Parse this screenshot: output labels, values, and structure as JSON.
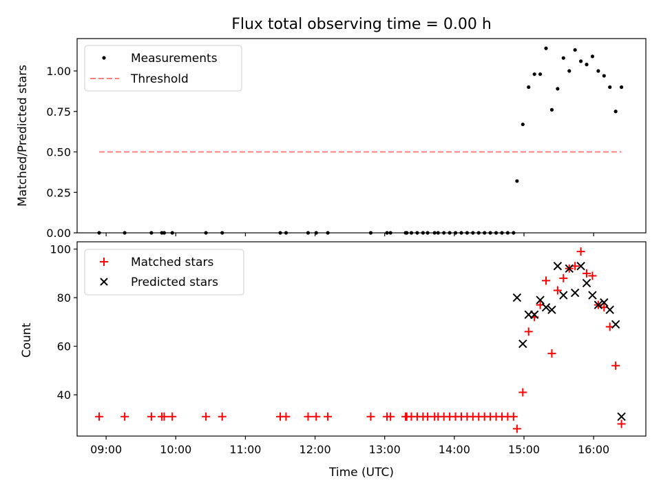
{
  "chart_data": [
    {
      "type": "scatter",
      "title": "Flux total observing time = 0.00 h",
      "xlabel": "",
      "ylabel": "Matched/Predicted stars",
      "xlim": [
        "08:35",
        "16:45"
      ],
      "ylim": [
        0,
        1.2
      ],
      "yticks": [
        "0.00",
        "0.25",
        "0.50",
        "0.75",
        "1.00"
      ],
      "legend_position": "upper-left",
      "series": [
        {
          "name": "Measurements",
          "kind": "points",
          "color": "#000000",
          "points": [
            [
              "08:54",
              0.0
            ],
            [
              "09:16",
              0.0
            ],
            [
              "09:39",
              0.0
            ],
            [
              "09:48",
              0.0
            ],
            [
              "09:50",
              0.0
            ],
            [
              "09:57",
              0.0
            ],
            [
              "10:26",
              0.0
            ],
            [
              "10:40",
              0.0
            ],
            [
              "11:30",
              0.0
            ],
            [
              "11:35",
              0.0
            ],
            [
              "11:54",
              0.0
            ],
            [
              "12:01",
              0.0
            ],
            [
              "12:11",
              0.0
            ],
            [
              "12:48",
              0.0
            ],
            [
              "13:02",
              0.0
            ],
            [
              "13:05",
              0.0
            ],
            [
              "13:18",
              0.0
            ],
            [
              "13:19",
              0.0
            ],
            [
              "13:23",
              0.0
            ],
            [
              "13:28",
              0.0
            ],
            [
              "13:33",
              0.0
            ],
            [
              "13:37",
              0.0
            ],
            [
              "13:43",
              0.0
            ],
            [
              "13:46",
              0.0
            ],
            [
              "13:51",
              0.0
            ],
            [
              "13:56",
              0.0
            ],
            [
              "14:01",
              0.0
            ],
            [
              "14:06",
              0.0
            ],
            [
              "14:11",
              0.0
            ],
            [
              "14:16",
              0.0
            ],
            [
              "14:21",
              0.0
            ],
            [
              "14:26",
              0.0
            ],
            [
              "14:31",
              0.0
            ],
            [
              "14:36",
              0.0
            ],
            [
              "14:41",
              0.0
            ],
            [
              "14:46",
              0.0
            ],
            [
              "14:51",
              0.0
            ],
            [
              "14:54",
              0.32
            ],
            [
              "14:59",
              0.67
            ],
            [
              "15:04",
              0.9
            ],
            [
              "15:09",
              0.98
            ],
            [
              "15:14",
              0.98
            ],
            [
              "15:19",
              1.14
            ],
            [
              "15:24",
              0.76
            ],
            [
              "15:29",
              0.89
            ],
            [
              "15:34",
              1.08
            ],
            [
              "15:39",
              1.0
            ],
            [
              "15:44",
              1.13
            ],
            [
              "15:49",
              1.06
            ],
            [
              "15:54",
              1.04
            ],
            [
              "15:59",
              1.09
            ],
            [
              "16:04",
              1.0
            ],
            [
              "16:09",
              0.97
            ],
            [
              "16:14",
              0.9
            ],
            [
              "16:19",
              0.75
            ],
            [
              "16:24",
              0.9
            ]
          ]
        },
        {
          "name": "Threshold",
          "kind": "dashed-line",
          "color": "#ff7f7f",
          "points": [
            [
              "08:54",
              0.5
            ],
            [
              "16:24",
              0.5
            ]
          ]
        }
      ]
    },
    {
      "type": "scatter",
      "title": "",
      "xlabel": "Time (UTC)",
      "ylabel": "Count",
      "xlim": [
        "08:35",
        "16:45"
      ],
      "ylim": [
        23,
        103
      ],
      "xticks": [
        "09:00",
        "10:00",
        "11:00",
        "12:00",
        "13:00",
        "14:00",
        "15:00",
        "16:00"
      ],
      "yticks": [
        "40",
        "60",
        "80",
        "100"
      ],
      "legend_position": "upper-left",
      "series": [
        {
          "name": "Matched stars",
          "kind": "plus",
          "color": "#ff0000",
          "points": [
            [
              "08:54",
              31
            ],
            [
              "09:16",
              31
            ],
            [
              "09:39",
              31
            ],
            [
              "09:48",
              31
            ],
            [
              "09:50",
              31
            ],
            [
              "09:57",
              31
            ],
            [
              "10:26",
              31
            ],
            [
              "10:40",
              31
            ],
            [
              "11:30",
              31
            ],
            [
              "11:35",
              31
            ],
            [
              "11:54",
              31
            ],
            [
              "12:01",
              31
            ],
            [
              "12:11",
              31
            ],
            [
              "12:48",
              31
            ],
            [
              "13:02",
              31
            ],
            [
              "13:05",
              31
            ],
            [
              "13:18",
              31
            ],
            [
              "13:19",
              31
            ],
            [
              "13:23",
              31
            ],
            [
              "13:28",
              31
            ],
            [
              "13:33",
              31
            ],
            [
              "13:37",
              31
            ],
            [
              "13:43",
              31
            ],
            [
              "13:46",
              31
            ],
            [
              "13:51",
              31
            ],
            [
              "13:56",
              31
            ],
            [
              "14:01",
              31
            ],
            [
              "14:06",
              31
            ],
            [
              "14:11",
              31
            ],
            [
              "14:16",
              31
            ],
            [
              "14:21",
              31
            ],
            [
              "14:26",
              31
            ],
            [
              "14:31",
              31
            ],
            [
              "14:36",
              31
            ],
            [
              "14:41",
              31
            ],
            [
              "14:46",
              31
            ],
            [
              "14:51",
              31
            ],
            [
              "14:54",
              26
            ],
            [
              "14:59",
              41
            ],
            [
              "15:04",
              66
            ],
            [
              "15:09",
              72
            ],
            [
              "15:14",
              77
            ],
            [
              "15:19",
              87
            ],
            [
              "15:24",
              57
            ],
            [
              "15:29",
              83
            ],
            [
              "15:34",
              88
            ],
            [
              "15:39",
              92
            ],
            [
              "15:44",
              93
            ],
            [
              "15:49",
              99
            ],
            [
              "15:54",
              90
            ],
            [
              "15:59",
              89
            ],
            [
              "16:04",
              77
            ],
            [
              "16:09",
              76
            ],
            [
              "16:14",
              68
            ],
            [
              "16:19",
              52
            ],
            [
              "16:24",
              28
            ]
          ]
        },
        {
          "name": "Predicted stars",
          "kind": "cross",
          "color": "#000000",
          "points": [
            [
              "14:54",
              80
            ],
            [
              "14:59",
              61
            ],
            [
              "15:04",
              73
            ],
            [
              "15:09",
              73
            ],
            [
              "15:14",
              79
            ],
            [
              "15:19",
              76
            ],
            [
              "15:24",
              75
            ],
            [
              "15:29",
              93
            ],
            [
              "15:34",
              81
            ],
            [
              "15:39",
              92
            ],
            [
              "15:44",
              82
            ],
            [
              "15:49",
              93
            ],
            [
              "15:54",
              86
            ],
            [
              "15:59",
              81
            ],
            [
              "16:04",
              77
            ],
            [
              "16:09",
              78
            ],
            [
              "16:14",
              75
            ],
            [
              "16:19",
              69
            ],
            [
              "16:24",
              31
            ]
          ]
        }
      ]
    }
  ]
}
